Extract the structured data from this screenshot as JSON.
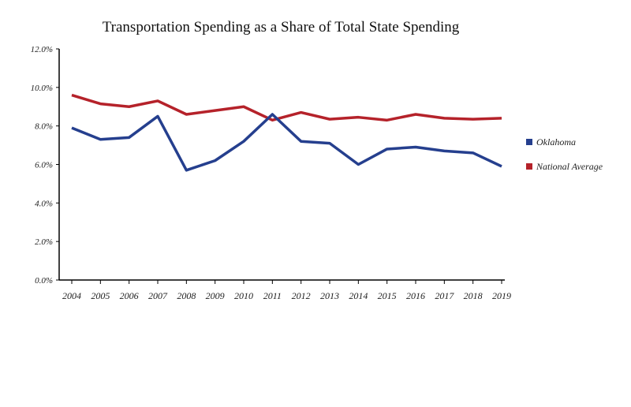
{
  "chart_data": {
    "type": "line",
    "title": "Transportation Spending as a Share of Total State Spending",
    "xlabel": "",
    "ylabel": "",
    "x": [
      "2004",
      "2005",
      "2006",
      "2007",
      "2008",
      "2009",
      "2010",
      "2011",
      "2012",
      "2013",
      "2014",
      "2015",
      "2016",
      "2017",
      "2018",
      "2019"
    ],
    "ylim": [
      0,
      12
    ],
    "yticks": [
      "0.0%",
      "2.0%",
      "4.0%",
      "6.0%",
      "8.0%",
      "10.0%",
      "12.0%"
    ],
    "ytick_values": [
      0,
      2,
      4,
      6,
      8,
      10,
      12
    ],
    "grid": false,
    "legend_position": "right",
    "series": [
      {
        "name": "Oklahoma",
        "color": "#253f8e",
        "values": [
          7.9,
          7.3,
          7.4,
          8.5,
          5.7,
          6.2,
          7.2,
          8.6,
          7.2,
          7.1,
          6.0,
          6.8,
          6.9,
          6.7,
          6.6,
          5.9
        ]
      },
      {
        "name": "National Average",
        "color": "#b5222a",
        "values": [
          9.6,
          9.15,
          9.0,
          9.3,
          8.6,
          8.8,
          9.0,
          8.3,
          8.7,
          8.35,
          8.45,
          8.3,
          8.6,
          8.4,
          8.35,
          8.4
        ]
      }
    ]
  }
}
